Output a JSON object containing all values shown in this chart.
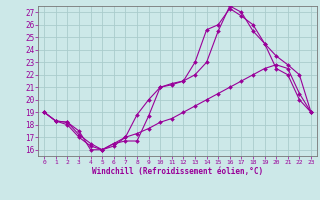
{
  "xlabel": "Windchill (Refroidissement éolien,°C)",
  "background_color": "#cce8e8",
  "grid_color": "#aacccc",
  "line_color": "#990099",
  "spine_color": "#777777",
  "xlim": [
    -0.5,
    23.5
  ],
  "ylim": [
    15.5,
    27.5
  ],
  "yticks": [
    16,
    17,
    18,
    19,
    20,
    21,
    22,
    23,
    24,
    25,
    26,
    27
  ],
  "xticks": [
    0,
    1,
    2,
    3,
    4,
    5,
    6,
    7,
    8,
    9,
    10,
    11,
    12,
    13,
    14,
    15,
    16,
    17,
    18,
    19,
    20,
    21,
    22,
    23
  ],
  "series": [
    {
      "x": [
        0,
        1,
        2,
        3,
        4,
        5,
        6,
        7,
        8,
        9,
        10,
        11,
        12,
        13,
        14,
        15,
        16,
        17,
        18,
        19,
        20,
        21,
        22,
        23
      ],
      "y": [
        19.0,
        18.3,
        18.2,
        17.5,
        16.0,
        16.0,
        16.5,
        16.7,
        16.7,
        18.7,
        21.0,
        21.3,
        21.5,
        23.0,
        25.6,
        26.0,
        27.3,
        26.7,
        26.0,
        24.5,
        22.5,
        22.0,
        20.0,
        19.0
      ]
    },
    {
      "x": [
        0,
        1,
        2,
        3,
        4,
        5,
        6,
        7,
        8,
        9,
        10,
        11,
        12,
        13,
        14,
        15,
        16,
        17,
        18,
        19,
        20,
        21,
        22,
        23
      ],
      "y": [
        19.0,
        18.3,
        18.2,
        17.2,
        16.5,
        16.0,
        16.3,
        17.0,
        18.8,
        20.0,
        21.0,
        21.2,
        21.5,
        22.0,
        23.0,
        25.5,
        27.5,
        27.0,
        25.5,
        24.5,
        23.5,
        22.8,
        22.0,
        19.0
      ]
    },
    {
      "x": [
        0,
        1,
        2,
        3,
        4,
        5,
        6,
        7,
        8,
        9,
        10,
        11,
        12,
        13,
        14,
        15,
        16,
        17,
        18,
        19,
        20,
        21,
        22,
        23
      ],
      "y": [
        19.0,
        18.3,
        18.0,
        17.0,
        16.3,
        16.0,
        16.5,
        17.0,
        17.3,
        17.7,
        18.2,
        18.5,
        19.0,
        19.5,
        20.0,
        20.5,
        21.0,
        21.5,
        22.0,
        22.5,
        22.8,
        22.5,
        20.5,
        19.0
      ]
    }
  ]
}
